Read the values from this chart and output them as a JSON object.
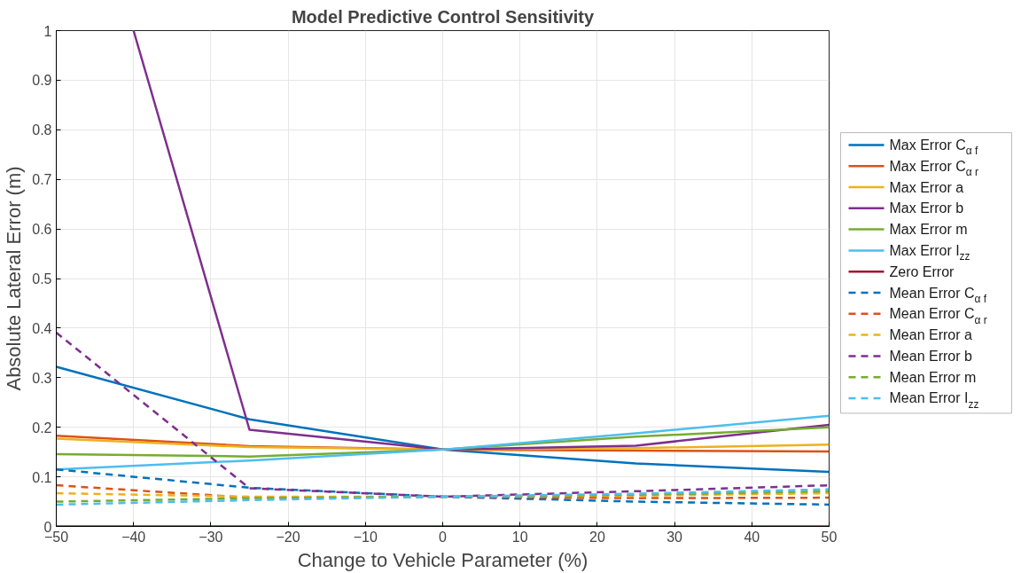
{
  "chart_data": {
    "type": "line",
    "title": "Model Predictive Control Sensitivity",
    "xlabel": "Change to Vehicle Parameter (%)",
    "ylabel": "Absolute Lateral Error (m)",
    "x": [
      -50,
      -25,
      0,
      25,
      50
    ],
    "xlim": [
      -50,
      50
    ],
    "xticks": [
      -50,
      -40,
      -30,
      -20,
      -10,
      0,
      10,
      20,
      30,
      40,
      50
    ],
    "ylim": [
      0,
      1
    ],
    "yticks": [
      0,
      0.1,
      0.2,
      0.3,
      0.4,
      0.5,
      0.6,
      0.7,
      0.8,
      0.9,
      1
    ],
    "grid": true,
    "legend": "right",
    "marker": "none",
    "series": [
      {
        "name": "Max Error C$_{α f}$",
        "color": "#0072bd",
        "line_style": "solid",
        "values": [
          0.322,
          0.216,
          0.155,
          0.127,
          0.11
        ]
      },
      {
        "name": "Max Error C$_{α r}$",
        "color": "#d95319",
        "line_style": "solid",
        "values": [
          0.183,
          0.162,
          0.155,
          0.153,
          0.151
        ]
      },
      {
        "name": "Max Error a",
        "color": "#edb120",
        "line_style": "solid",
        "values": [
          0.177,
          0.16,
          0.155,
          0.158,
          0.165
        ]
      },
      {
        "name": "Max Error b",
        "color": "#7e2f8e",
        "line_style": "solid",
        "x": [
          -40,
          -25,
          0,
          25,
          50
        ],
        "values": [
          1.0,
          0.195,
          0.155,
          0.163,
          0.205
        ]
      },
      {
        "name": "Max Error m",
        "color": "#77ac30",
        "line_style": "solid",
        "values": [
          0.146,
          0.141,
          0.155,
          0.181,
          0.2
        ]
      },
      {
        "name": "Max Error I$_{zz}$",
        "color": "#4dbeee",
        "line_style": "solid",
        "values": [
          0.115,
          0.133,
          0.155,
          0.188,
          0.223
        ]
      },
      {
        "name": "Zero Error",
        "color": "#a2142f",
        "line_style": "solid",
        "values": [
          0,
          0,
          0,
          0,
          0
        ]
      },
      {
        "name": "Mean Error C$_{α f}$",
        "color": "#0072bd",
        "line_style": "dashed",
        "values": [
          0.115,
          0.078,
          0.06,
          0.05,
          0.044
        ]
      },
      {
        "name": "Mean Error C$_{α r}$",
        "color": "#d95319",
        "line_style": "dashed",
        "values": [
          0.083,
          0.058,
          0.06,
          0.057,
          0.058
        ]
      },
      {
        "name": "Mean Error a",
        "color": "#edb120",
        "line_style": "dashed",
        "values": [
          0.067,
          0.06,
          0.06,
          0.062,
          0.067
        ]
      },
      {
        "name": "Mean Error b",
        "color": "#7e2f8e",
        "line_style": "dashed",
        "values": [
          0.391,
          0.077,
          0.06,
          0.071,
          0.083
        ]
      },
      {
        "name": "Mean Error m",
        "color": "#77ac30",
        "line_style": "dashed",
        "values": [
          0.05,
          0.057,
          0.06,
          0.064,
          0.071
        ]
      },
      {
        "name": "Mean Error I$_{zz}$",
        "color": "#4dbeee",
        "line_style": "dashed",
        "values": [
          0.044,
          0.053,
          0.06,
          0.066,
          0.075
        ]
      }
    ]
  }
}
